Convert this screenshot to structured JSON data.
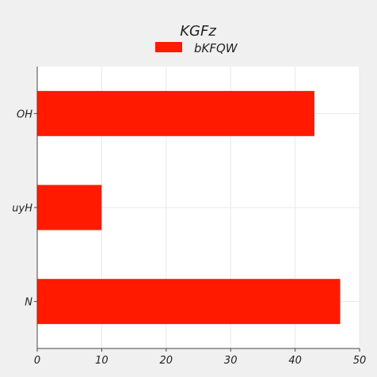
{
  "chart_data": {
    "type": "bar",
    "orientation": "horizontal",
    "title": "KGFz",
    "xlabel": "",
    "ylabel": "",
    "categories": [
      "OH",
      "uyH",
      "N"
    ],
    "series": [
      {
        "name": "bKFQW",
        "values": [
          43,
          10,
          47
        ],
        "color": "#ff1a00"
      }
    ],
    "xlim": [
      0,
      50
    ],
    "xticks": [
      0,
      10,
      20,
      30,
      40,
      50
    ],
    "grid": true,
    "legend_position": "top-center"
  },
  "colors": {
    "background": "#f0f0f0",
    "plot_background": "#ffffff",
    "grid": "#e8e8e8",
    "axis": "#444444"
  }
}
